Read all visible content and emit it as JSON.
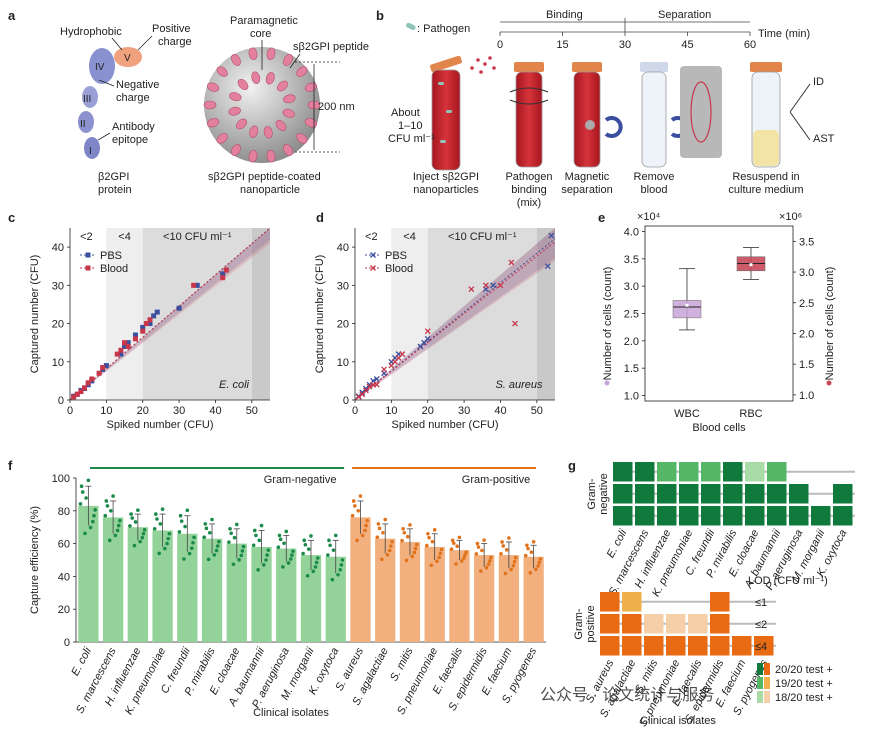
{
  "colors": {
    "pbs": "#3a4fa0",
    "blood": "#c8364a",
    "green_bar": "#93d39a",
    "green_dot": "#1a8a4a",
    "orange_bar": "#f2b07e",
    "orange_dot": "#e0731c",
    "wbc_box": "#c9a4d8",
    "rbc_box": "#c84a5a",
    "grid_dark_green": "#0f7a3c",
    "grid_mid_green": "#55b765",
    "grid_light_green": "#a8dba5",
    "grid_dark_orange": "#e86a12",
    "grid_mid_orange": "#f2b04a",
    "grid_light_orange": "#f5cfa8"
  },
  "panel_labels": [
    "a",
    "b",
    "c",
    "d",
    "e",
    "f",
    "g"
  ],
  "panel_a": {
    "protein_labels": {
      "hydrophobic": "Hydrophobic",
      "positive": "Positive",
      "charge1": "charge",
      "negative": "Negative",
      "charge2": "charge",
      "antibody": "Antibody",
      "epitope": "epitope",
      "caption1": "β2GPI",
      "caption2": "protein"
    },
    "domains": [
      "I",
      "II",
      "III",
      "IV",
      "V"
    ],
    "nano_labels": {
      "paramagnetic": "Paramagnetic",
      "core": "core",
      "peptide": "sβ2GPI peptide",
      "size": "200 nm",
      "caption1": "sβ2GPI peptide-coated",
      "caption2": "nanoparticle"
    }
  },
  "panel_b": {
    "legend": ": Pathogen",
    "phase_binding": "Binding",
    "phase_separation": "Separation",
    "time_ticks": [
      "0",
      "15",
      "30",
      "45",
      "60"
    ],
    "time_label": "Time (min)",
    "about1": "About",
    "about2": "1–10",
    "about3": "CFU ml⁻¹",
    "steps": [
      [
        "Inject sβ2GPI",
        "nanoparticles"
      ],
      [
        "Pathogen",
        "binding",
        "(mix)"
      ],
      [
        "Magnetic",
        "separation"
      ],
      [
        "Remove",
        "blood"
      ],
      [
        "Resuspend in",
        "culture medium"
      ]
    ],
    "id": "ID",
    "ast": "AST"
  },
  "chart_data": [
    {
      "panel": "c",
      "type": "scatter",
      "title": "E. coli",
      "xlabel": "Spiked number (CFU)",
      "ylabel": "Captured number (CFU)",
      "xlim": [
        0,
        55
      ],
      "ylim": [
        0,
        45
      ],
      "xticks": [
        "0",
        "10",
        "20",
        "30",
        "40",
        "50"
      ],
      "yticks": [
        "0",
        "10",
        "20",
        "30",
        "40"
      ],
      "zones": [
        "<2",
        "<4",
        "<10 CFU ml⁻¹"
      ],
      "legend": [
        "PBS",
        "Blood"
      ],
      "series": [
        {
          "name": "PBS",
          "points": [
            [
              1,
              1
            ],
            [
              2,
              1.5
            ],
            [
              3,
              2.5
            ],
            [
              4,
              3
            ],
            [
              5,
              4
            ],
            [
              6,
              5
            ],
            [
              9,
              8
            ],
            [
              10,
              9
            ],
            [
              14,
              12
            ],
            [
              15,
              14
            ],
            [
              16,
              15
            ],
            [
              18,
              17
            ],
            [
              20,
              19
            ],
            [
              22,
              20
            ],
            [
              23,
              22
            ],
            [
              24,
              23
            ],
            [
              30,
              24
            ],
            [
              35,
              30
            ],
            [
              42,
              33
            ]
          ]
        },
        {
          "name": "Blood",
          "points": [
            [
              1,
              0.8
            ],
            [
              2,
              1.5
            ],
            [
              3,
              2.2
            ],
            [
              4,
              3.2
            ],
            [
              5,
              4.5
            ],
            [
              6,
              5.5
            ],
            [
              8,
              7
            ],
            [
              9,
              8.5
            ],
            [
              13,
              12
            ],
            [
              14,
              13
            ],
            [
              15,
              15
            ],
            [
              16,
              14
            ],
            [
              18,
              16
            ],
            [
              20,
              18
            ],
            [
              21,
              20
            ],
            [
              22,
              21
            ],
            [
              34,
              30
            ],
            [
              42,
              32
            ],
            [
              43,
              34
            ]
          ]
        }
      ]
    },
    {
      "panel": "d",
      "type": "scatter",
      "title": "S. aureus",
      "xlabel": "Spiked number (CFU)",
      "ylabel": "Captured number (CFU)",
      "xlim": [
        0,
        55
      ],
      "ylim": [
        0,
        45
      ],
      "xticks": [
        "0",
        "10",
        "20",
        "30",
        "40",
        "50"
      ],
      "yticks": [
        "0",
        "10",
        "20",
        "30",
        "40"
      ],
      "zones": [
        "<2",
        "<4",
        "<10 CFU ml⁻¹"
      ],
      "legend": [
        "PBS",
        "Blood"
      ],
      "series": [
        {
          "name": "PBS",
          "points": [
            [
              1,
              1
            ],
            [
              2,
              2
            ],
            [
              3,
              3
            ],
            [
              4,
              4
            ],
            [
              5,
              5
            ],
            [
              6,
              5.5
            ],
            [
              8,
              7
            ],
            [
              10,
              10
            ],
            [
              11,
              11
            ],
            [
              12,
              12
            ],
            [
              18,
              14
            ],
            [
              19,
              15
            ],
            [
              20,
              16
            ],
            [
              36,
              29
            ],
            [
              38,
              30
            ],
            [
              53,
              35
            ],
            [
              54,
              43
            ]
          ]
        },
        {
          "name": "Blood",
          "points": [
            [
              1,
              0.8
            ],
            [
              2,
              1.5
            ],
            [
              3,
              2.5
            ],
            [
              4,
              3.5
            ],
            [
              5,
              4
            ],
            [
              6,
              4
            ],
            [
              8,
              8
            ],
            [
              10,
              9
            ],
            [
              11,
              10
            ],
            [
              12,
              11
            ],
            [
              13,
              12
            ],
            [
              20,
              18
            ],
            [
              32,
              29
            ],
            [
              36,
              30
            ],
            [
              40,
              30
            ],
            [
              44,
              20
            ],
            [
              43,
              36
            ]
          ]
        }
      ]
    },
    {
      "panel": "e",
      "type": "box",
      "xlabel": "Blood cells",
      "categories": [
        "WBC",
        "RBC"
      ],
      "left_axis": {
        "label": "Number of cells (count)",
        "exponent": "×10⁴",
        "ylim": [
          0.9,
          4.1
        ],
        "ticks": [
          "1.0",
          "1.5",
          "2.0",
          "2.5",
          "3.0",
          "3.5",
          "4.0"
        ]
      },
      "right_axis": {
        "label": "Number of cells (count)",
        "exponent": "×10⁶",
        "ylim": [
          0.9,
          3.75
        ],
        "ticks": [
          "1.0",
          "1.5",
          "2.0",
          "2.5",
          "3.0",
          "3.5"
        ]
      },
      "boxes": [
        {
          "name": "WBC",
          "axis": "left",
          "min": 2.2,
          "q1": 2.42,
          "median": 2.62,
          "q3": 2.74,
          "max": 3.32,
          "mean": 2.65
        },
        {
          "name": "RBC",
          "axis": "right",
          "min": 2.88,
          "q1": 3.02,
          "median": 3.14,
          "q3": 3.25,
          "max": 3.4,
          "mean": 3.12
        }
      ]
    },
    {
      "panel": "f",
      "type": "bar",
      "xlabel": "Clinical isolates",
      "ylabel": "Capture efficiency (%)",
      "ylim": [
        0,
        100
      ],
      "yticks": [
        "0",
        "20",
        "40",
        "60",
        "80",
        "100"
      ],
      "groups": [
        "Gram-negative",
        "Gram-positive"
      ],
      "categories": [
        "E. coli",
        "S. marcescens",
        "H. influenzae",
        "K. pneumoniae",
        "C. freundii",
        "P. mirabilis",
        "E. cloacae",
        "A. baumannii",
        "P. aeruginosa",
        "M. morganii",
        "K. oxytoca",
        "S. aureus",
        "S. agalactiae",
        "S. mitis",
        "S. pneumoniae",
        "E. faecalis",
        "S. epidermidis",
        "E. faecium",
        "S. pyogenes"
      ],
      "group_of": [
        "neg",
        "neg",
        "neg",
        "neg",
        "neg",
        "neg",
        "neg",
        "neg",
        "neg",
        "neg",
        "neg",
        "pos",
        "pos",
        "pos",
        "pos",
        "pos",
        "pos",
        "pos",
        "pos"
      ],
      "values": [
        83,
        76,
        70,
        68,
        66,
        63,
        60,
        58,
        57,
        53,
        52,
        76,
        63,
        61,
        58,
        56,
        53,
        53,
        52
      ],
      "errors": [
        12,
        10,
        8,
        10,
        11,
        9,
        9,
        10,
        8,
        9,
        10,
        10,
        9,
        8,
        8,
        6,
        7,
        8,
        7
      ]
    }
  ],
  "panel_g": {
    "neg_label": [
      "Gram-",
      "negative"
    ],
    "pos_label": [
      "Gram-",
      "positive"
    ],
    "neg_columns": [
      "E. coli",
      "S. marcescens",
      "H. influenzae",
      "K. pneumoniae",
      "C. freundii",
      "P. mirabilis",
      "E. cloacae",
      "A. baumannii",
      "P. aeruginosa",
      "M. morganii",
      "K. oxytoca"
    ],
    "pos_columns": [
      "S. aureus",
      "S. agalactiae",
      "S. mitis",
      "S. pneumoniae",
      "E. faecalis",
      "S. epidermidis",
      "E. faecium",
      "S. pyogenes"
    ],
    "neg_grid": [
      [
        3,
        3,
        2,
        2,
        2,
        3,
        1,
        2,
        0,
        0,
        0
      ],
      [
        3,
        3,
        3,
        3,
        3,
        3,
        3,
        3,
        3,
        0,
        3
      ],
      [
        3,
        3,
        3,
        3,
        3,
        3,
        3,
        3,
        3,
        3,
        3
      ]
    ],
    "pos_grid": [
      [
        3,
        2,
        0,
        0,
        0,
        3,
        0,
        0
      ],
      [
        3,
        3,
        1,
        1,
        1,
        3,
        0,
        0
      ],
      [
        3,
        3,
        3,
        3,
        3,
        3,
        3,
        3
      ]
    ],
    "lod_title": "LOD (CFU ml⁻¹)",
    "lod_rows": [
      "≤1",
      "≤2",
      "≤4"
    ],
    "legend": [
      "20/20 test +",
      "19/20 test +",
      "18/20 test +"
    ],
    "xlabel": "Clinical isolates"
  },
  "watermark": "公众号 · 论文统计与服务"
}
